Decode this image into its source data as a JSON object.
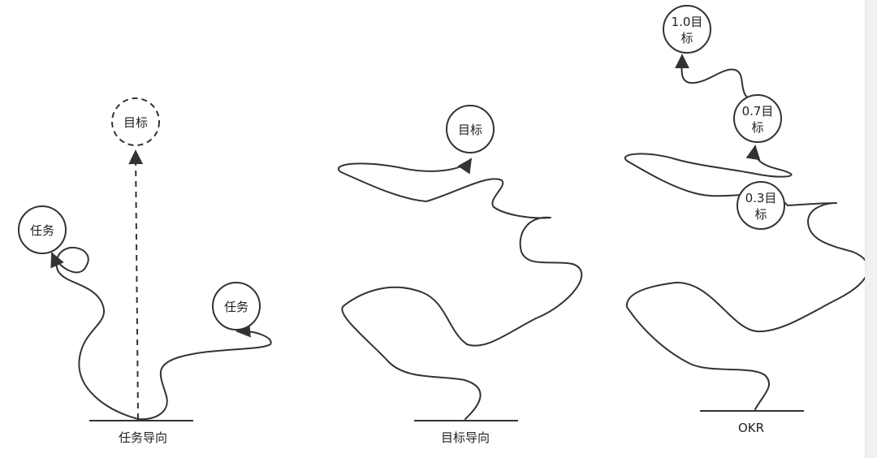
{
  "panels": [
    {
      "caption": "任务导向",
      "nodes": [
        {
          "label": "目标",
          "style": "dashed"
        },
        {
          "label": "任务",
          "style": "solid"
        },
        {
          "label": "任务",
          "style": "solid"
        }
      ]
    },
    {
      "caption": "目标导向",
      "nodes": [
        {
          "label": "目标",
          "style": "solid"
        }
      ]
    },
    {
      "caption": "OKR",
      "nodes": [
        {
          "label_line1": "1.0目",
          "label_line2": "标",
          "style": "solid"
        },
        {
          "label_line1": "0.7目",
          "label_line2": "标",
          "style": "solid"
        },
        {
          "label_line1": "0.3目",
          "label_line2": "标",
          "style": "solid"
        }
      ]
    }
  ],
  "colors": {
    "stroke": "#333333",
    "text": "#222222",
    "background": "#ffffff"
  }
}
